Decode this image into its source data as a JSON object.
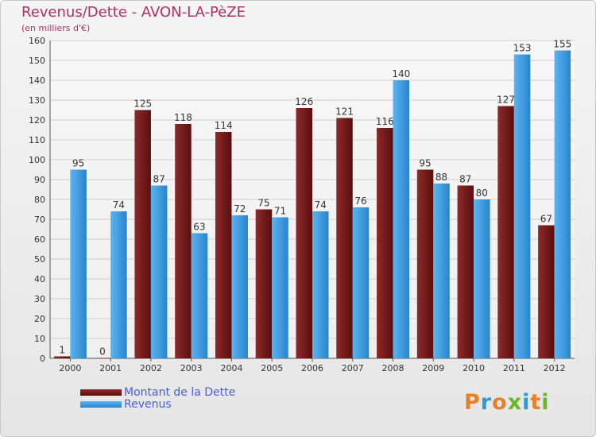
{
  "chart_data": {
    "type": "bar",
    "title": "Revenus/Dette - AVON-LA-PèZE",
    "subtitle": "(en milliers d'€)",
    "categories": [
      "2000",
      "2001",
      "2002",
      "2003",
      "2004",
      "2005",
      "2006",
      "2007",
      "2008",
      "2009",
      "2010",
      "2011",
      "2012"
    ],
    "series": [
      {
        "name": "Montant de la Dette",
        "color": "#7a1a1a",
        "values": [
          1,
          0,
          125,
          118,
          114,
          75,
          126,
          121,
          116,
          95,
          87,
          127,
          67
        ]
      },
      {
        "name": "Revenus",
        "color": "#3aa0e8",
        "values": [
          95,
          74,
          87,
          63,
          72,
          71,
          74,
          76,
          140,
          88,
          80,
          153,
          155
        ]
      }
    ],
    "ylim": [
      0,
      160
    ],
    "yticks": [
      0,
      10,
      20,
      30,
      40,
      50,
      60,
      70,
      80,
      90,
      100,
      110,
      120,
      130,
      140,
      150,
      160
    ],
    "grid": true,
    "legend": "bottom-left",
    "xlabel": "",
    "ylabel": ""
  },
  "logo": {
    "letters": [
      "P",
      "r",
      "o",
      "x",
      "i",
      "t",
      "i"
    ],
    "colors": [
      "#e8802a",
      "#2a9ad8",
      "#e8802a",
      "#6ab82a",
      "#2a9ad8",
      "#e8802a",
      "#6ab82a"
    ]
  }
}
